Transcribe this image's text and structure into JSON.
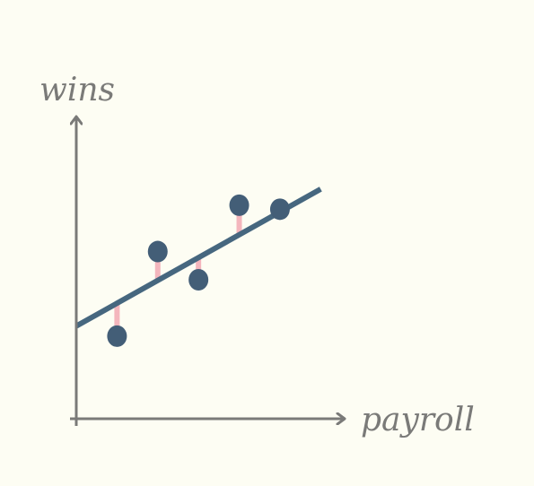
{
  "chart_data": {
    "type": "scatter",
    "xlabel": "payroll",
    "ylabel": "wins",
    "xlim": [
      0,
      6.5
    ],
    "ylim": [
      0,
      7.5
    ],
    "points": [
      {
        "x": 1.0,
        "y": 2.05
      },
      {
        "x": 2.0,
        "y": 4.15
      },
      {
        "x": 3.0,
        "y": 3.45
      },
      {
        "x": 4.0,
        "y": 5.3
      },
      {
        "x": 5.0,
        "y": 5.2
      }
    ],
    "regression_line": {
      "x": [
        0.0,
        6.0
      ],
      "y": [
        2.3,
        5.7
      ]
    },
    "residuals_shown": true
  },
  "colors": {
    "background": "#fdfdf3",
    "axis": "#7a7a78",
    "point": "#435e77",
    "line": "#46677f",
    "residual": "#f4b6bd"
  }
}
